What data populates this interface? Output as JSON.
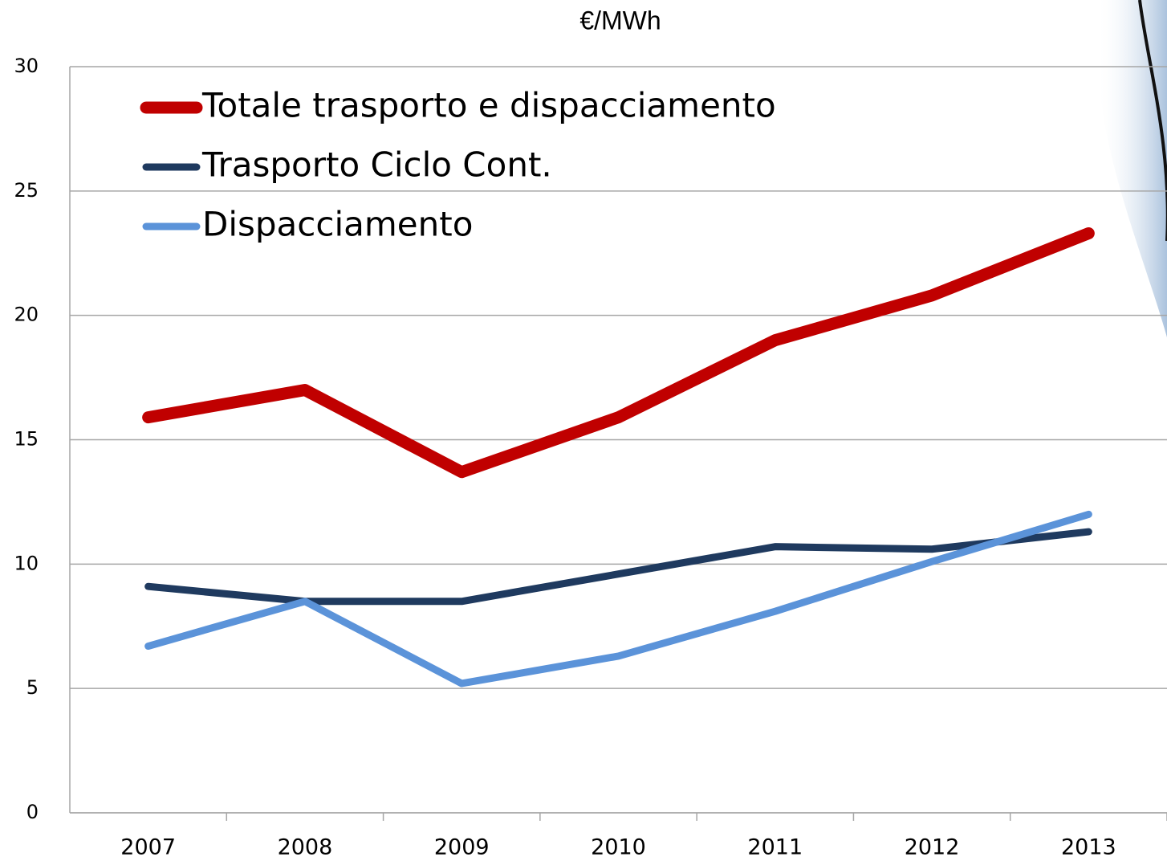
{
  "chart_data": {
    "type": "line",
    "title": "€/MWh",
    "categories": [
      "2007",
      "2008",
      "2009",
      "2010",
      "2011",
      "2012",
      "2013"
    ],
    "series": [
      {
        "name": "Totale trasporto e dispacciamento",
        "color": "#c00000",
        "values": [
          15.9,
          17.0,
          13.7,
          15.9,
          19.0,
          20.8,
          23.3
        ]
      },
      {
        "name": "Trasporto Ciclo Cont.",
        "color": "#1f3a5f",
        "values": [
          9.1,
          8.5,
          8.5,
          9.6,
          10.7,
          10.6,
          11.3
        ]
      },
      {
        "name": "Dispacciamento",
        "color": "#5b93d9",
        "values": [
          6.7,
          8.5,
          5.2,
          6.3,
          8.1,
          10.1,
          12.0
        ]
      }
    ],
    "ylim": [
      0,
      30
    ],
    "yticks": [
      0,
      5,
      10,
      15,
      20,
      25,
      30
    ],
    "grid": true,
    "legend": "top-left"
  }
}
